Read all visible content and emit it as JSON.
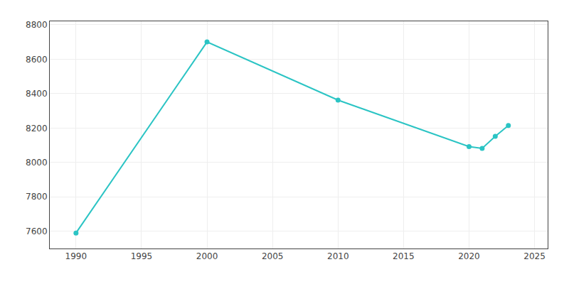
{
  "chart_data": {
    "type": "line",
    "x": [
      1990,
      2000,
      2010,
      2020,
      2021,
      2022,
      2023
    ],
    "values": [
      7590,
      8700,
      8362,
      8092,
      8082,
      8152,
      8215
    ],
    "color": "#2BC4C4",
    "marker": "circle",
    "line_style": "solid",
    "xlim": [
      1988,
      2026
    ],
    "ylim": [
      7500,
      8820
    ],
    "xticks": [
      1990,
      1995,
      2000,
      2005,
      2010,
      2015,
      2020,
      2025
    ],
    "yticks": [
      7600,
      7800,
      8000,
      8200,
      8400,
      8600,
      8800
    ],
    "grid": true
  }
}
